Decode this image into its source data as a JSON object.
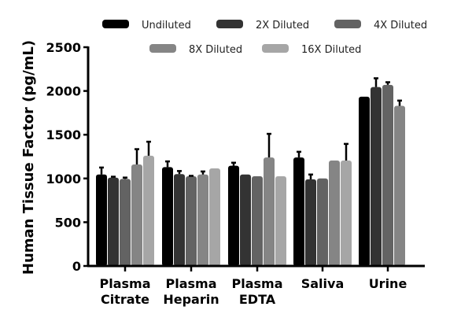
{
  "chart_data": {
    "type": "bar",
    "title": "",
    "xlabel": "",
    "ylabel": "Human Tissue Factor (pg/mL)",
    "ylim": [
      0,
      2500
    ],
    "yticks": [
      0,
      500,
      1000,
      1500,
      2000,
      2500
    ],
    "grid": false,
    "legend_placement": "top",
    "categories": [
      [
        "Plasma",
        "Citrate"
      ],
      [
        "Plasma",
        "Heparin"
      ],
      [
        "Plasma",
        "EDTA"
      ],
      [
        "Saliva"
      ],
      [
        "Urine"
      ]
    ],
    "series": [
      {
        "name": "Undiluted",
        "color": "#000000",
        "values": [
          1045,
          1130,
          1145,
          1240,
          1935
        ],
        "error_top": [
          1125,
          1195,
          1180,
          1305,
          null
        ]
      },
      {
        "name": "2X Diluted",
        "color": "#333333",
        "values": [
          1010,
          1050,
          1045,
          990,
          2045
        ],
        "error_top": [
          1020,
          1085,
          null,
          1045,
          2145
        ]
      },
      {
        "name": "4X Diluted",
        "color": "#636363",
        "values": [
          995,
          1025,
          1025,
          1000,
          2070
        ],
        "error_top": [
          1010,
          1030,
          null,
          null,
          2100
        ]
      },
      {
        "name": "8X Diluted",
        "color": "#858585",
        "values": [
          1160,
          1045,
          1240,
          1205,
          1830
        ],
        "error_top": [
          1335,
          1080,
          1510,
          null,
          1890
        ]
      },
      {
        "name": "16X Diluted",
        "color": "#a6a6a6",
        "values": [
          1260,
          1115,
          1025,
          1205,
          null
        ],
        "error_top": [
          1420,
          null,
          null,
          1395,
          null
        ]
      }
    ]
  }
}
